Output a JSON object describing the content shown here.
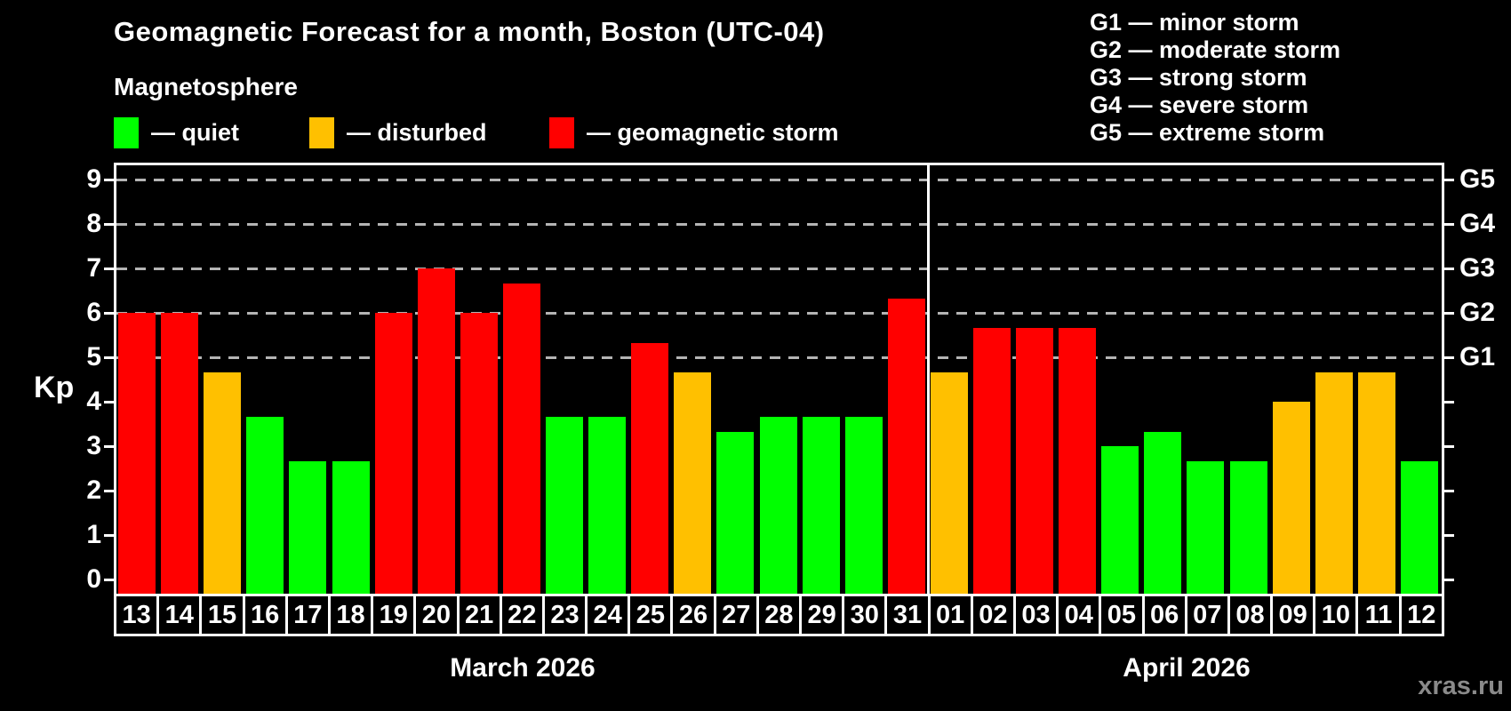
{
  "header": {
    "title": "Geomagnetic Forecast for a month, Boston (UTC-04)",
    "subtitle": "Magnetosphere"
  },
  "legend": {
    "items": [
      {
        "name": "quiet",
        "label": "— quiet",
        "color": "#00ff00"
      },
      {
        "name": "disturbed",
        "label": "— disturbed",
        "color": "#ffc000"
      },
      {
        "name": "storm",
        "label": "— geomagnetic storm",
        "color": "#ff0000"
      }
    ]
  },
  "g_scale_legend": [
    "G1 — minor storm",
    "G2 — moderate storm",
    "G3 — strong storm",
    "G4 — severe storm",
    "G5 — extreme storm"
  ],
  "axes": {
    "ylabel": "Kp",
    "yticks": [
      "0",
      "1",
      "2",
      "3",
      "4",
      "5",
      "6",
      "7",
      "8",
      "9"
    ],
    "right_labels": [
      {
        "kp": 9,
        "label": "G5"
      },
      {
        "kp": 8,
        "label": "G4"
      },
      {
        "kp": 7,
        "label": "G3"
      },
      {
        "kp": 6,
        "label": "G2"
      },
      {
        "kp": 5,
        "label": "G1"
      }
    ],
    "month_left": "March 2026",
    "month_right": "April 2026"
  },
  "watermark": "xras.ru",
  "chart_data": {
    "type": "bar",
    "title": "Geomagnetic Forecast for a month, Boston (UTC-04)",
    "subtitle": "Magnetosphere",
    "ylabel": "Kp",
    "ylim": [
      0,
      9.5
    ],
    "grid": "horizontal dashed lines only at Kp 5-9 (G1-G5 storm levels)",
    "legend_position": "top-left",
    "right_axis": "G storm scale: G1=Kp5, G2=Kp6, G3=Kp7, G4=Kp8, G5=Kp9",
    "months": [
      {
        "label": "March 2026",
        "days": 19
      },
      {
        "label": "April 2026",
        "days": 12
      }
    ],
    "categories": [
      "13",
      "14",
      "15",
      "16",
      "17",
      "18",
      "19",
      "20",
      "21",
      "22",
      "23",
      "24",
      "25",
      "26",
      "27",
      "28",
      "29",
      "30",
      "31",
      "01",
      "02",
      "03",
      "04",
      "05",
      "06",
      "07",
      "08",
      "09",
      "10",
      "11",
      "12"
    ],
    "values": [
      6.0,
      6.0,
      4.67,
      3.67,
      2.67,
      2.67,
      6.0,
      7.0,
      6.0,
      6.67,
      3.67,
      3.67,
      5.33,
      4.67,
      3.33,
      3.67,
      3.67,
      3.67,
      6.33,
      4.67,
      5.67,
      5.67,
      5.67,
      3.0,
      3.33,
      2.67,
      2.67,
      4.0,
      4.67,
      4.67,
      2.67
    ],
    "statuses": [
      "storm",
      "storm",
      "disturbed",
      "quiet",
      "quiet",
      "quiet",
      "storm",
      "storm",
      "storm",
      "storm",
      "quiet",
      "quiet",
      "storm",
      "disturbed",
      "quiet",
      "quiet",
      "quiet",
      "quiet",
      "storm",
      "disturbed",
      "storm",
      "storm",
      "storm",
      "quiet",
      "quiet",
      "quiet",
      "quiet",
      "disturbed",
      "disturbed",
      "disturbed",
      "quiet"
    ],
    "colors": {
      "quiet": "#00ff00",
      "disturbed": "#ffc000",
      "storm": "#ff0000"
    },
    "gridlines_at": [
      5,
      6,
      7,
      8,
      9
    ]
  }
}
